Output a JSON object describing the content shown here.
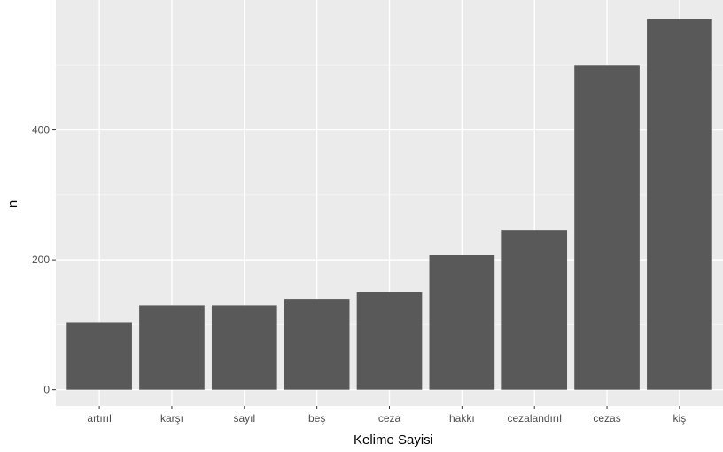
{
  "chart_data": {
    "type": "bar",
    "categories": [
      "artırıl",
      "karşı",
      "sayıl",
      "beş",
      "ceza",
      "hakkı",
      "cezalandırıl",
      "cezas",
      "kiş"
    ],
    "values": [
      104,
      130,
      130,
      140,
      150,
      207,
      245,
      500,
      570
    ],
    "xlabel": "Kelime Sayisi",
    "ylabel": "n",
    "ylim": [
      -25,
      600
    ],
    "yticks": [
      0,
      200,
      400
    ],
    "grid": true,
    "legend": "none"
  },
  "colors": {
    "panel_background": "#ebebeb",
    "grid_major": "#ffffff",
    "grid_minor": "#f5f5f5",
    "bar_fill": "#595959",
    "tick_text": "#4d4d4d",
    "axis_title": "#000000"
  }
}
